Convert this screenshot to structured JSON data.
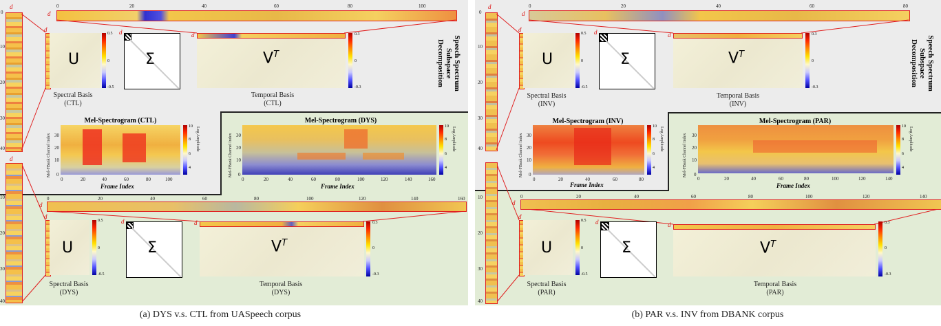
{
  "left": {
    "upper": {
      "title": "Speech Spectrum Subspace Decomposition",
      "u_label": "U",
      "sigma_label": "Σ",
      "v_label": "V",
      "v_sup": "T",
      "spectral_basis": "Spectral Basis",
      "spectral_group": "(CTL)",
      "temporal_basis": "Temporal Basis",
      "temporal_group": "(CTL)",
      "u_cb": [
        "0.5",
        "0",
        "-0.5"
      ],
      "v_cb": [
        "0.3",
        "0",
        "-0.3"
      ],
      "top_ticks": [
        "0",
        "20",
        "40",
        "60",
        "80",
        "100"
      ],
      "left_ticks": [
        "0",
        "10",
        "20",
        "30",
        "40"
      ]
    },
    "mel_ctl": {
      "title": "Mel-Spectrogram (CTL)",
      "xticks": [
        "0",
        "20",
        "40",
        "60",
        "80",
        "100"
      ],
      "yticks": [
        "30",
        "20",
        "10",
        "0"
      ],
      "cb": [
        "10",
        "8",
        "6",
        "4"
      ],
      "ylabel": "Mel-FBank Channel Index",
      "xlabel": "Frame Index",
      "cblabel": "Log Amplitude"
    },
    "mel_dys": {
      "title": "Mel-Spectrogram (DYS)",
      "xticks": [
        "0",
        "20",
        "40",
        "60",
        "80",
        "100",
        "120",
        "140",
        "160"
      ],
      "yticks": [
        "30",
        "20",
        "10",
        "0"
      ],
      "cb": [
        "10",
        "8",
        "6",
        "4"
      ],
      "ylabel": "Mel-FBank Channel Index",
      "xlabel": "Frame Index",
      "cblabel": "Log Amplitude"
    },
    "lower": {
      "u_label": "U",
      "sigma_label": "Σ",
      "v_label": "V",
      "v_sup": "T",
      "spectral_basis": "Spectral Basis",
      "spectral_group": "(DYS)",
      "temporal_basis": "Temporal Basis",
      "temporal_group": "(DYS)",
      "u_cb": [
        "0.5",
        "0",
        "-0.5"
      ],
      "v_cb": [
        "0.3",
        "0",
        "-0.3"
      ],
      "top_ticks": [
        "0",
        "20",
        "40",
        "60",
        "80",
        "100",
        "120",
        "140",
        "160"
      ],
      "left_ticks": [
        "10",
        "20",
        "30",
        "40"
      ]
    },
    "caption": "(a) DYS v.s. CTL from UASpeech corpus"
  },
  "right": {
    "upper": {
      "title": "Speech Spectrum Subspace Decomposition",
      "u_label": "U",
      "sigma_label": "Σ",
      "v_label": "V",
      "v_sup": "T",
      "spectral_basis": "Spectral Basis",
      "spectral_group": "(INV)",
      "temporal_basis": "Temporal Basis",
      "temporal_group": "(INV)",
      "u_cb": [
        "0.5",
        "0",
        "-0.5"
      ],
      "v_cb": [
        "0.3",
        "0",
        "-0.3"
      ],
      "top_ticks": [
        "0",
        "20",
        "40",
        "60",
        "80"
      ],
      "left_ticks": [
        "0",
        "10",
        "20",
        "30",
        "40"
      ]
    },
    "mel_inv": {
      "title": "Mel-Spectrogram (INV)",
      "xticks": [
        "0",
        "20",
        "40",
        "60",
        "80"
      ],
      "yticks": [
        "30",
        "20",
        "10",
        "0"
      ],
      "cb": [
        "10",
        "8",
        "6",
        "4"
      ],
      "ylabel": "Mel-FBank Channel Index",
      "xlabel": "Frame Index",
      "cblabel": "Log Amplitude"
    },
    "mel_par": {
      "title": "Mel-Spectrogram (PAR)",
      "xticks": [
        "0",
        "20",
        "40",
        "60",
        "80",
        "100",
        "120",
        "140"
      ],
      "yticks": [
        "30",
        "20",
        "10",
        "0"
      ],
      "cb": [
        "10",
        "8",
        "6",
        "4"
      ],
      "ylabel": "Mel-FBank Channel Index",
      "xlabel": "Frame Index",
      "cblabel": "Log Amplitude"
    },
    "lower": {
      "u_label": "U",
      "sigma_label": "Σ",
      "v_label": "V",
      "v_sup": "T",
      "spectral_basis": "Spectral Basis",
      "spectral_group": "(PAR)",
      "temporal_basis": "Temporal Basis",
      "temporal_group": "(PAR)",
      "u_cb": [
        "0.5",
        "0",
        "-0.5"
      ],
      "v_cb": [
        "0.3",
        "0",
        "-0.3"
      ],
      "top_ticks": [
        "0",
        "20",
        "40",
        "60",
        "80",
        "100",
        "120",
        "140"
      ],
      "left_ticks": [
        "10",
        "20",
        "30",
        "40"
      ]
    },
    "caption": "(b) PAR v.s. INV from DBANK corpus"
  },
  "d": "d",
  "colors": {
    "upper_bg": "#ececec",
    "lower_bg": "#e2ecd6",
    "accent": "#e02020"
  }
}
